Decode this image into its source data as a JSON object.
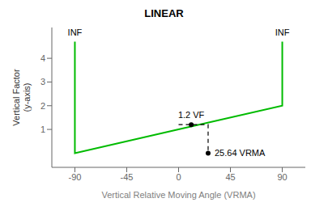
{
  "chart_data": {
    "type": "line",
    "title": "LINEAR",
    "x_label": "Vertical Relative Moving Angle (VRMA)",
    "y_label": "Vertical Factor\n(y-axis)",
    "xlim": [
      -110,
      110
    ],
    "xticks": [
      -90,
      -45,
      0,
      45,
      90
    ],
    "ylim": [
      -0.6,
      5.3
    ],
    "yticks": [
      1,
      2,
      3,
      4
    ],
    "grid": false,
    "series": [
      {
        "x": [
          -90,
          -90,
          0,
          90,
          90
        ],
        "values": [
          4.7,
          0,
          1,
          2,
          4.7
        ],
        "color": "#00bb00",
        "line_style": "solid"
      },
      {
        "x": [
          0,
          25.64,
          25.64
        ],
        "values": [
          1.2,
          1.2,
          0
        ],
        "color": "#000000",
        "line_style": "dashed"
      }
    ],
    "annotations": [
      {
        "text": "1.2 VF",
        "x": 11,
        "y": 1.2
      },
      {
        "text": "25.64 VRMA",
        "x": 25.64,
        "y": 0
      },
      {
        "text": "INF",
        "x": -90,
        "y": 4.78
      },
      {
        "text": "INF",
        "x": 90,
        "y": 4.78
      }
    ]
  }
}
